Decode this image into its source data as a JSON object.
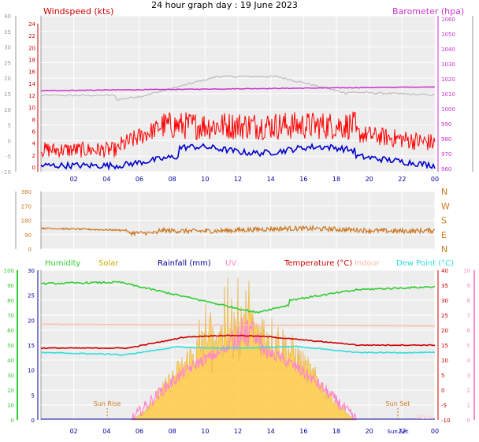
{
  "title": "24 hour graph day : 19 June 2023",
  "panels": {
    "wind": {
      "left_label": "Windspeed (kts)",
      "right_label": "Barometer (hpa)",
      "left_ticks": [
        "-10",
        "-5",
        "0",
        "5",
        "10",
        "15",
        "20",
        "25",
        "30",
        "35",
        "40"
      ],
      "inner_left_ticks": [
        "0",
        "2",
        "4",
        "6",
        "8",
        "10",
        "12",
        "14",
        "16",
        "18",
        "20",
        "22",
        "24"
      ],
      "right_ticks": [
        "980",
        "990",
        "1000",
        "1010",
        "1020",
        "1030",
        "1040",
        "1050",
        "1060"
      ],
      "inner_right_ticks": [
        "960",
        "970",
        "980",
        "990",
        "1000",
        "1010",
        "1020",
        "1030",
        "1040",
        "1050",
        "1060"
      ],
      "x_ticks": [
        "02",
        "04",
        "06",
        "08",
        "10",
        "12",
        "14",
        "16",
        "18",
        "20",
        "22",
        "00"
      ]
    },
    "dir": {
      "left_ticks": [
        "360",
        "270",
        "180",
        "90",
        "0"
      ],
      "right_labels": [
        "N",
        "W",
        "S",
        "E",
        "N"
      ]
    },
    "temp": {
      "legend": [
        "Humidity",
        "Solar",
        "Rainfall (mm)",
        "UV",
        "Temperature (°C)",
        "Indoor",
        "Dew Point (°C)"
      ],
      "hum_ticks": [
        "0",
        "10",
        "20",
        "30",
        "40",
        "50",
        "60",
        "70",
        "80",
        "90",
        "100"
      ],
      "rain_ticks": [
        "0",
        "5",
        "10",
        "15",
        "20",
        "25",
        "30"
      ],
      "temp_ticks": [
        "-10",
        "-5",
        "0",
        "5",
        "10",
        "15",
        "20",
        "25",
        "30",
        "35",
        "40"
      ],
      "uv_ticks": [
        "0",
        "1",
        "2",
        "3",
        "4",
        "5",
        "6",
        "7",
        "8",
        "9",
        "10"
      ],
      "x_ticks": [
        "02",
        "04",
        "06",
        "08",
        "10",
        "12",
        "14",
        "16",
        "18",
        "20",
        "22",
        "00"
      ],
      "sunrise": "Sun Rise",
      "sunset": "Sun Set",
      "sunset2": "Sun Set",
      "moon": "Moon"
    }
  },
  "colors": {
    "wind": "#ff0000",
    "gust": "#0000cc",
    "baro": "#cc33cc",
    "baro_grey": "#bbbbbb",
    "dir": "#cc7722",
    "humidity": "#33cc33",
    "solar": "#ffcc44",
    "rain": "#000099",
    "uv": "#ff88cc",
    "temp": "#cc0000",
    "indoor": "#ffbbaa",
    "dew": "#33dddd"
  },
  "chart_data": [
    {
      "type": "line",
      "title": "24 hour graph day : 19 June 2023",
      "ylabel": "Windspeed (kts)",
      "y2label": "Barometer (hpa)",
      "x": [
        "00",
        "02",
        "04",
        "06",
        "08",
        "10",
        "12",
        "14",
        "16",
        "18",
        "20",
        "22",
        "00"
      ],
      "ylim": [
        -10,
        40
      ],
      "y2lim": [
        980,
        1060
      ],
      "series": [
        {
          "name": "Windspeed (kts)",
          "values": [
            -4,
            -4,
            -6,
            -4,
            2,
            4,
            5,
            5,
            4,
            3,
            2,
            -3,
            -3
          ]
        },
        {
          "name": "Gust",
          "values": [
            -8,
            -8,
            -10,
            -8,
            -5,
            -4,
            -2,
            -2,
            -3,
            -4,
            -4,
            -8,
            -8
          ]
        },
        {
          "name": "Barometer (hpa)",
          "values": [
            1014,
            1014,
            1014,
            1014,
            1014,
            1015,
            1015,
            1015,
            1015,
            1015,
            1015,
            1016,
            1016
          ]
        }
      ]
    },
    {
      "type": "line",
      "ylabel": "Wind direction",
      "x": [
        "00",
        "02",
        "04",
        "06",
        "08",
        "10",
        "12",
        "14",
        "16",
        "18",
        "20",
        "22",
        "00"
      ],
      "ylim": [
        0,
        360
      ],
      "series": [
        {
          "name": "Direction",
          "values": [
            130,
            120,
            110,
            90,
            100,
            120,
            130,
            130,
            115,
            110,
            120,
            130,
            140
          ]
        }
      ]
    },
    {
      "type": "line",
      "x": [
        "00",
        "02",
        "04",
        "06",
        "08",
        "10",
        "12",
        "14",
        "16",
        "18",
        "20",
        "22",
        "00"
      ],
      "series": [
        {
          "name": "Humidity",
          "values": [
            92,
            91,
            91,
            92,
            84,
            79,
            71,
            74,
            80,
            84,
            87,
            89,
            89
          ]
        },
        {
          "name": "Temperature (°C)",
          "values": [
            14,
            14,
            14,
            14,
            15,
            17,
            18,
            18,
            17,
            16,
            15,
            15,
            15
          ]
        },
        {
          "name": "Dew Point (°C)",
          "values": [
            13,
            12,
            12,
            12,
            13,
            14,
            15,
            15,
            14,
            13,
            13,
            12,
            12
          ]
        },
        {
          "name": "Indoor",
          "values": [
            22,
            22,
            21,
            21,
            21,
            21,
            21,
            21,
            21,
            21,
            21,
            21,
            21
          ]
        },
        {
          "name": "Solar",
          "values": [
            0,
            0,
            0,
            0,
            5,
            10,
            20,
            22,
            12,
            5,
            1,
            0,
            0
          ]
        },
        {
          "name": "UV",
          "values": [
            0,
            0,
            0,
            0,
            1,
            2,
            5,
            6,
            3,
            1,
            0,
            0,
            0
          ]
        },
        {
          "name": "Rainfall (mm)",
          "values": [
            0,
            0,
            0,
            0,
            0,
            0,
            0,
            0,
            0,
            0,
            0,
            0,
            0
          ]
        }
      ]
    }
  ]
}
